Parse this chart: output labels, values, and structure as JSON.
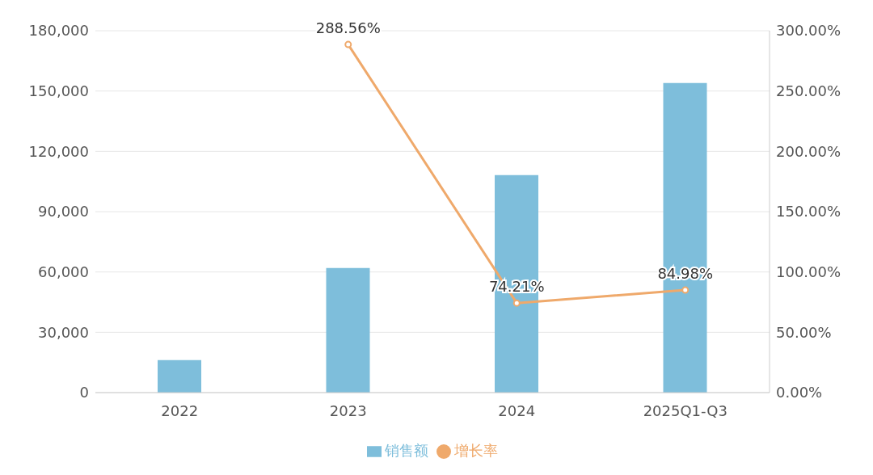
{
  "chart_data": {
    "type": "bar",
    "categories": [
      "2022",
      "2023",
      "2024",
      "2025Q1-Q3"
    ],
    "series": [
      {
        "name": "销售额",
        "color": "#7ebedb",
        "values": [
          16200,
          62000,
          108200,
          154000
        ]
      },
      {
        "name": "增长率",
        "type": "line",
        "axis": "y2",
        "color": "#efa96b",
        "values": [
          null,
          288.56,
          74.21,
          84.98
        ],
        "value_labels": [
          null,
          "288.56%",
          "74.21%",
          "84.98%"
        ]
      }
    ],
    "ylim": [
      0,
      180000
    ],
    "yticks": [
      {
        "value": 0,
        "label": "0"
      },
      {
        "value": 30000,
        "label": "30,000"
      },
      {
        "value": 60000,
        "label": "60,000"
      },
      {
        "value": 90000,
        "label": "90,000"
      },
      {
        "value": 120000,
        "label": "120,000"
      },
      {
        "value": 150000,
        "label": "150,000"
      },
      {
        "value": 180000,
        "label": "180,000"
      }
    ],
    "y2lim": [
      0,
      300
    ],
    "y2ticks": [
      {
        "value": 0,
        "label": "0.00%"
      },
      {
        "value": 50,
        "label": "50.00%"
      },
      {
        "value": 100,
        "label": "100.00%"
      },
      {
        "value": 150,
        "label": "150.00%"
      },
      {
        "value": 200,
        "label": "200.00%"
      },
      {
        "value": 250,
        "label": "250.00%"
      },
      {
        "value": 300,
        "label": "300.00%"
      }
    ],
    "grid": "y",
    "legend": "bottom",
    "marker": "circle"
  }
}
